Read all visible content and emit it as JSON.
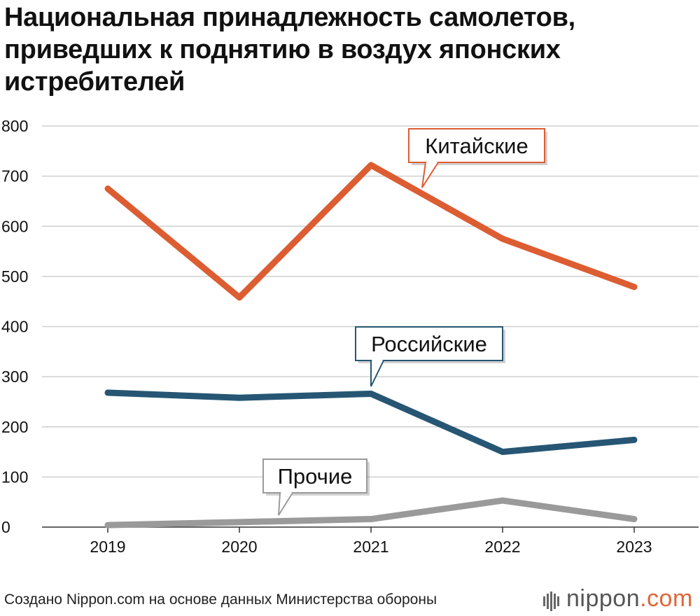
{
  "title_lines": [
    "Национальная принадлежность самолетов,",
    "приведших к поднятию в воздух японских",
    "истребителей"
  ],
  "footer": "Создано Nippon.com на основе данных Министерства обороны",
  "logo": {
    "name": "nippon",
    "suffix": ".com"
  },
  "colors": {
    "china": "#dd5d33",
    "russia": "#265673",
    "other": "#9a9a9a",
    "grid": "#cfcfcf"
  },
  "chart_data": {
    "type": "line",
    "title": "Национальная принадлежность самолетов, приведших к поднятию в воздух японских истребителей",
    "xlabel": "",
    "ylabel": "",
    "categories": [
      "2019",
      "2020",
      "2021",
      "2022",
      "2023"
    ],
    "ylim": [
      0,
      800
    ],
    "yticks": [
      0,
      100,
      200,
      300,
      400,
      500,
      600,
      700,
      800
    ],
    "grid": true,
    "series": [
      {
        "name": "Китайские",
        "values": [
          675,
          458,
          722,
          575,
          479
        ]
      },
      {
        "name": "Российские",
        "values": [
          268,
          258,
          266,
          150,
          174
        ]
      },
      {
        "name": "Прочие",
        "values": [
          4,
          10,
          16,
          53,
          16
        ]
      }
    ]
  }
}
